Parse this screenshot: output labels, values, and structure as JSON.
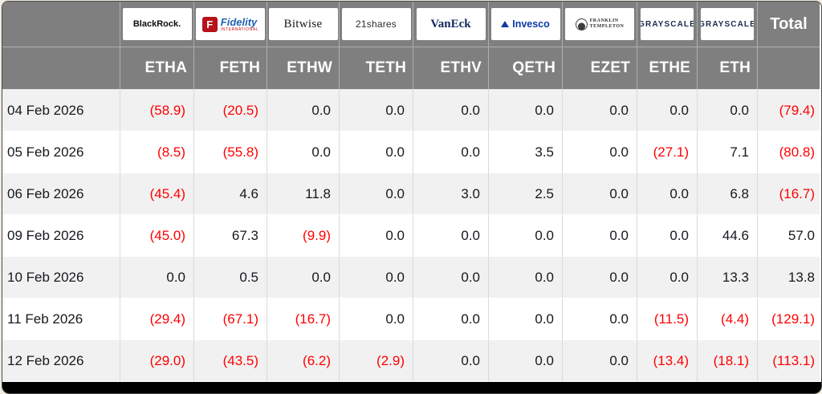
{
  "widget": {
    "total_label": "Total"
  },
  "colors": {
    "header_bg": "#7f7f7f",
    "negative": "#ff0000",
    "value_text": "#15181d",
    "band_row": "#f1f1f1",
    "plain_row": "#ffffff",
    "footer_bar": "#000000",
    "ticker_text": "#ffffff"
  },
  "table": {
    "issuers": [
      {
        "ticker": "ETHA",
        "logo": {
          "style": "blackrock",
          "name": "blackrock-logo",
          "text": "BlackRock."
        }
      },
      {
        "ticker": "FETH",
        "logo": {
          "style": "fidelity",
          "name": "fidelity-logo",
          "badge": "F",
          "text": "Fidelity",
          "sub": "INTERNATIONAL"
        }
      },
      {
        "ticker": "ETHW",
        "logo": {
          "style": "bitwise",
          "name": "bitwise-logo",
          "text": "Bitwise"
        }
      },
      {
        "ticker": "TETH",
        "logo": {
          "style": "shares21",
          "name": "21shares-logo",
          "text": "21shares"
        }
      },
      {
        "ticker": "ETHV",
        "logo": {
          "style": "vaneck",
          "name": "vaneck-logo",
          "text": "VanEck"
        }
      },
      {
        "ticker": "QETH",
        "logo": {
          "style": "invesco",
          "name": "invesco-logo",
          "icon": "mountain",
          "text": "Invesco"
        }
      },
      {
        "ticker": "EZET",
        "logo": {
          "style": "franklin",
          "name": "franklin-templeton-logo",
          "icon": "bust",
          "lines": [
            "FRANKLIN",
            "TEMPLETON"
          ]
        }
      },
      {
        "ticker": "ETHE",
        "logo": {
          "style": "grayscale",
          "name": "grayscale-logo",
          "text": "GRAYSCALE",
          "narrow": true
        }
      },
      {
        "ticker": "ETH",
        "logo": {
          "style": "grayscale",
          "name": "grayscale-mini-logo",
          "text": "GRAYSCALE",
          "narrow": true
        }
      }
    ],
    "rows": [
      {
        "date": "04 Feb 2026",
        "values": [
          "(58.9)",
          "(20.5)",
          "0.0",
          "0.0",
          "0.0",
          "0.0",
          "0.0",
          "0.0",
          "0.0"
        ],
        "total": "(79.4)"
      },
      {
        "date": "05 Feb 2026",
        "values": [
          "(8.5)",
          "(55.8)",
          "0.0",
          "0.0",
          "0.0",
          "3.5",
          "0.0",
          "(27.1)",
          "7.1"
        ],
        "total": "(80.8)"
      },
      {
        "date": "06 Feb 2026",
        "values": [
          "(45.4)",
          "4.6",
          "11.8",
          "0.0",
          "3.0",
          "2.5",
          "0.0",
          "0.0",
          "6.8"
        ],
        "total": "(16.7)"
      },
      {
        "date": "09 Feb 2026",
        "values": [
          "(45.0)",
          "67.3",
          "(9.9)",
          "0.0",
          "0.0",
          "0.0",
          "0.0",
          "0.0",
          "44.6"
        ],
        "total": "57.0"
      },
      {
        "date": "10 Feb 2026",
        "values": [
          "0.0",
          "0.5",
          "0.0",
          "0.0",
          "0.0",
          "0.0",
          "0.0",
          "0.0",
          "13.3"
        ],
        "total": "13.8"
      },
      {
        "date": "11 Feb 2026",
        "values": [
          "(29.4)",
          "(67.1)",
          "(16.7)",
          "0.0",
          "0.0",
          "0.0",
          "0.0",
          "(11.5)",
          "(4.4)"
        ],
        "total": "(129.1)"
      },
      {
        "date": "12 Feb 2026",
        "values": [
          "(29.0)",
          "(43.5)",
          "(6.2)",
          "(2.9)",
          "0.0",
          "0.0",
          "0.0",
          "(13.4)",
          "(18.1)"
        ],
        "total": "(113.1)"
      }
    ]
  }
}
